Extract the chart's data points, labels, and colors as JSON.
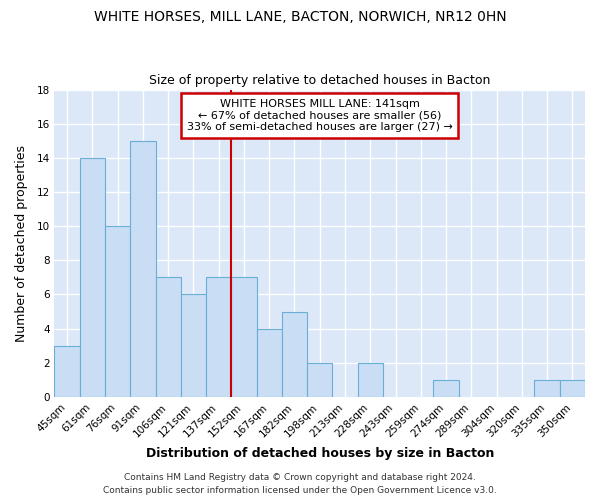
{
  "title": "WHITE HORSES, MILL LANE, BACTON, NORWICH, NR12 0HN",
  "subtitle": "Size of property relative to detached houses in Bacton",
  "xlabel": "Distribution of detached houses by size in Bacton",
  "ylabel": "Number of detached properties",
  "categories": [
    "45sqm",
    "61sqm",
    "76sqm",
    "91sqm",
    "106sqm",
    "121sqm",
    "137sqm",
    "152sqm",
    "167sqm",
    "182sqm",
    "198sqm",
    "213sqm",
    "228sqm",
    "243sqm",
    "259sqm",
    "274sqm",
    "289sqm",
    "304sqm",
    "320sqm",
    "335sqm",
    "350sqm"
  ],
  "values": [
    3,
    14,
    10,
    15,
    7,
    6,
    7,
    7,
    4,
    5,
    2,
    0,
    2,
    0,
    0,
    1,
    0,
    0,
    0,
    1,
    1
  ],
  "bar_color": "#c9ddf5",
  "bar_edge_color": "#6aaed6",
  "reference_line_x": 6.5,
  "reference_line_label": "WHITE HORSES MILL LANE: 141sqm",
  "annotation_line1": "← 67% of detached houses are smaller (56)",
  "annotation_line2": "33% of semi-detached houses are larger (27) →",
  "annotation_box_color": "#ffffff",
  "annotation_box_edge": "#cc0000",
  "vline_color": "#cc0000",
  "footer1": "Contains HM Land Registry data © Crown copyright and database right 2024.",
  "footer2": "Contains public sector information licensed under the Open Government Licence v3.0.",
  "ylim": [
    0,
    18
  ],
  "yticks": [
    0,
    2,
    4,
    6,
    8,
    10,
    12,
    14,
    16,
    18
  ],
  "background_color": "#dce8f8",
  "grid_color": "#ffffff",
  "fig_background": "#ffffff",
  "title_fontsize": 10,
  "subtitle_fontsize": 9,
  "axis_label_fontsize": 9,
  "tick_fontsize": 7.5,
  "footer_fontsize": 6.5,
  "annotation_fontsize": 8
}
